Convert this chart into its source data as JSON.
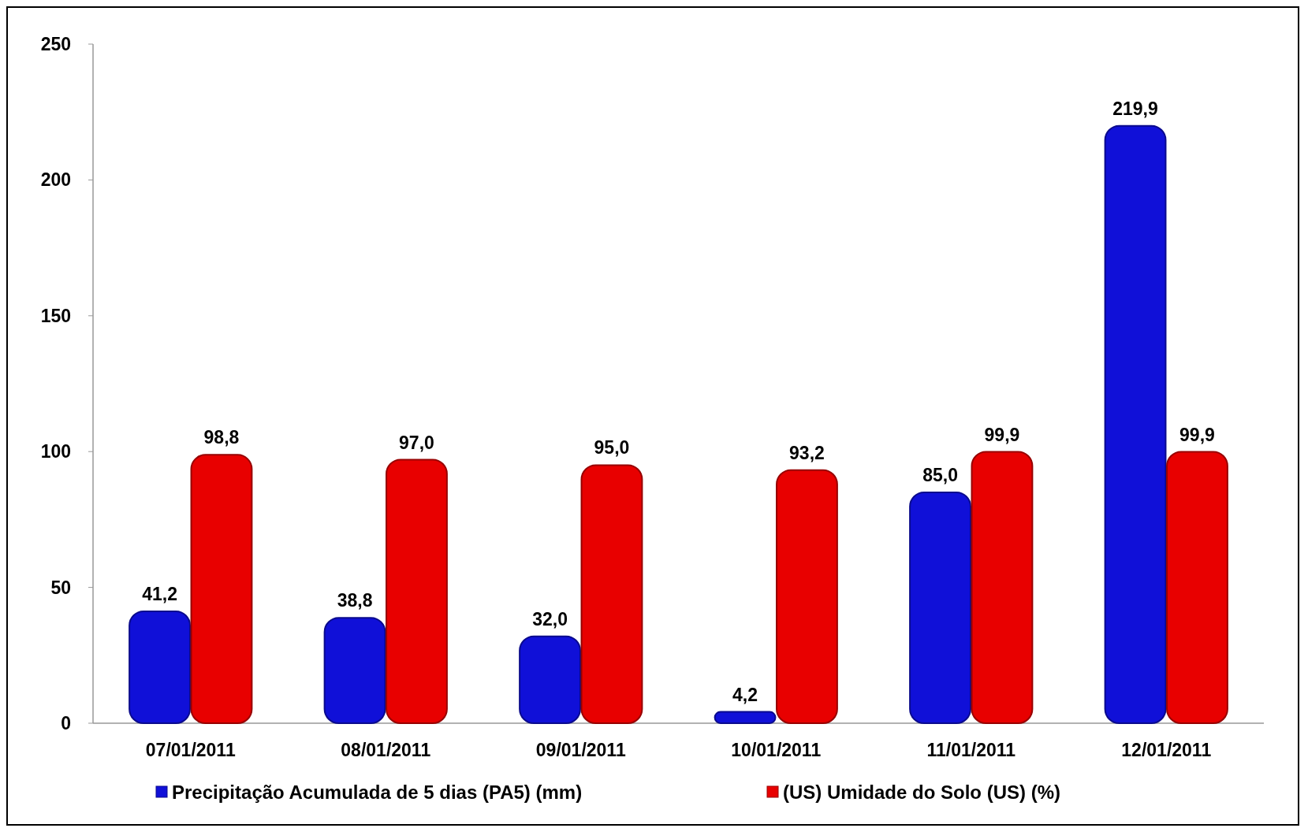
{
  "chart_data": {
    "type": "bar",
    "categories": [
      "07/01/2011",
      "08/01/2011",
      "09/01/2011",
      "10/01/2011",
      "11/01/2011",
      "12/01/2011"
    ],
    "series": [
      {
        "name": "Precipitação Acumulada de 5 dias (PA5) (mm)",
        "color": "#1010d8",
        "values": [
          41.2,
          38.8,
          32.0,
          4.2,
          85.0,
          219.9
        ],
        "value_labels": [
          "41,2",
          "38,8",
          "32,0",
          "4,2",
          "85,0",
          "219,9"
        ]
      },
      {
        "name": "(US) Umidade do Solo (US) (%)",
        "color": "#e80000",
        "values": [
          98.8,
          97.0,
          95.0,
          93.2,
          99.9,
          99.9
        ],
        "value_labels": [
          "98,8",
          "97,0",
          "95,0",
          "93,2",
          "99,9",
          "99,9"
        ]
      }
    ],
    "ylim": [
      0,
      250
    ],
    "yticks": [
      0,
      50,
      100,
      150,
      200,
      250
    ],
    "grid": false,
    "legend": "bottom"
  }
}
